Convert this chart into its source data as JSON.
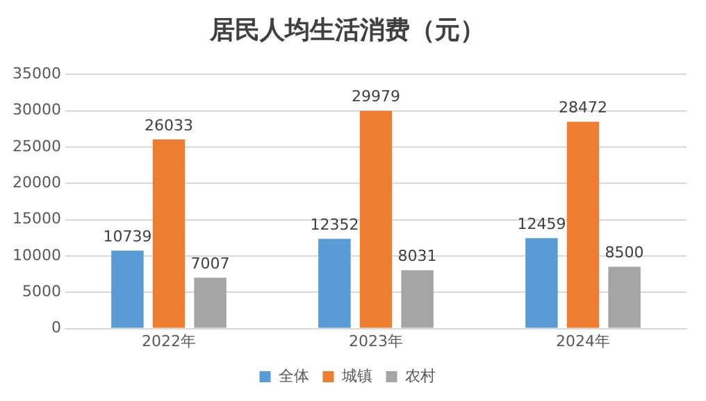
{
  "chart_data": {
    "type": "bar",
    "title": "居民人均生活消费（元）",
    "categories": [
      "2022年",
      "2023年",
      "2024年"
    ],
    "series": [
      {
        "name": "全体",
        "color": "#5b9bd5",
        "values": [
          10739,
          12352,
          12459
        ]
      },
      {
        "name": "城镇",
        "color": "#ed7d31",
        "values": [
          26033,
          29979,
          28472
        ]
      },
      {
        "name": "农村",
        "color": "#a5a5a5",
        "values": [
          7007,
          8031,
          8500
        ]
      }
    ],
    "ylim": [
      0,
      35000
    ],
    "yticks": [
      0,
      5000,
      10000,
      15000,
      20000,
      25000,
      30000,
      35000
    ],
    "grid": "y",
    "legend": "bottom",
    "data_labels": true
  }
}
